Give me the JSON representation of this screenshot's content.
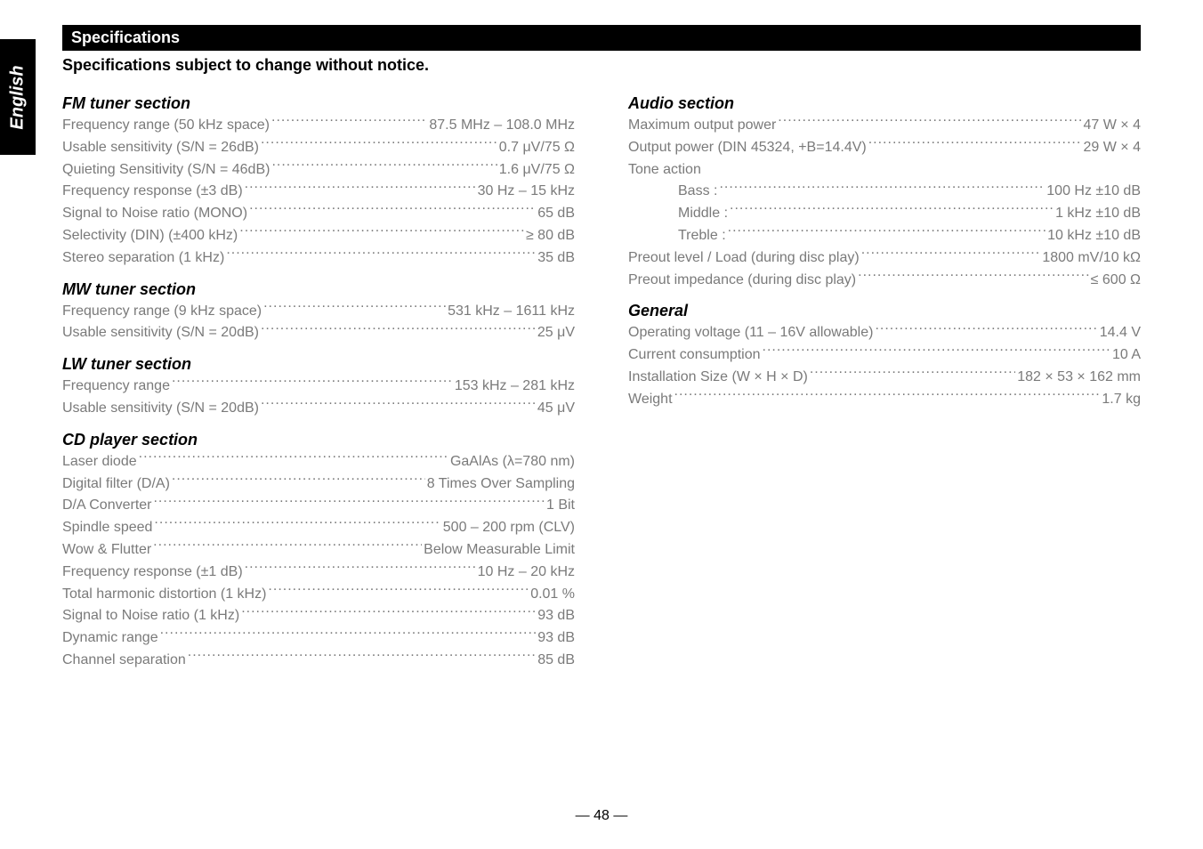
{
  "side_tab": "English",
  "spec_bar": "Specifications",
  "subtitle": "Specifications subject to change without notice.",
  "page_number": "— 48 —",
  "left": {
    "fm": {
      "head": "FM tuner section",
      "rows": [
        {
          "label": "Frequency range (50 kHz space)",
          "value": "87.5 MHz – 108.0 MHz"
        },
        {
          "label": "Usable sensitivity (S/N = 26dB)",
          "value": "0.7 μV/75 Ω"
        },
        {
          "label": "Quieting Sensitivity (S/N = 46dB)",
          "value": "1.6 μV/75 Ω"
        },
        {
          "label": "Frequency response (±3 dB)",
          "value": "30 Hz – 15 kHz"
        },
        {
          "label": "Signal to Noise ratio (MONO)",
          "value": "65 dB"
        },
        {
          "label": "Selectivity (DIN) (±400 kHz)",
          "value": "≥ 80 dB"
        },
        {
          "label": "Stereo separation (1 kHz)",
          "value": "35 dB"
        }
      ]
    },
    "mw": {
      "head": "MW tuner section",
      "rows": [
        {
          "label": "Frequency range (9 kHz space)",
          "value": "531 kHz – 1611 kHz"
        },
        {
          "label": "Usable sensitivity (S/N = 20dB)",
          "value": "25 μV"
        }
      ]
    },
    "lw": {
      "head": "LW tuner section",
      "rows": [
        {
          "label": "Frequency range",
          "value": "153 kHz – 281 kHz"
        },
        {
          "label": "Usable sensitivity (S/N = 20dB)",
          "value": "45 μV"
        }
      ]
    },
    "cd": {
      "head": "CD player section",
      "rows": [
        {
          "label": "Laser diode",
          "value": "GaAlAs (λ=780 nm)"
        },
        {
          "label": "Digital filter (D/A)",
          "value": "8 Times Over Sampling"
        },
        {
          "label": "D/A Converter",
          "value": "1 Bit"
        },
        {
          "label": "Spindle speed",
          "value": "500 – 200 rpm (CLV)"
        },
        {
          "label": "Wow & Flutter",
          "value": "Below Measurable Limit"
        },
        {
          "label": "Frequency response (±1 dB)",
          "value": "10 Hz – 20 kHz"
        },
        {
          "label": "Total harmonic distortion (1 kHz)",
          "value": "0.01 %"
        },
        {
          "label": "Signal to Noise ratio (1 kHz)",
          "value": "93 dB"
        },
        {
          "label": "Dynamic range",
          "value": "93 dB"
        },
        {
          "label": "Channel separation",
          "value": "85 dB"
        }
      ]
    }
  },
  "right": {
    "audio": {
      "head": "Audio section",
      "rows": [
        {
          "label": "Maximum output power",
          "value": "47 W × 4"
        },
        {
          "label": "Output power (DIN 45324, +B=14.4V)",
          "value": "29 W × 4"
        },
        {
          "label": "Tone action",
          "value": ""
        },
        {
          "label": "Bass :",
          "value": "100 Hz ±10 dB",
          "indent": true
        },
        {
          "label": "Middle :",
          "value": "1 kHz ±10 dB",
          "indent": true
        },
        {
          "label": "Treble :",
          "value": "10 kHz ±10 dB",
          "indent": true
        },
        {
          "label": "Preout level / Load (during disc play)",
          "value": "1800 mV/10 kΩ"
        },
        {
          "label": "Preout impedance (during disc play)",
          "value": "≤ 600 Ω"
        }
      ]
    },
    "general": {
      "head": "General",
      "rows": [
        {
          "label": "Operating voltage (11 – 16V allowable)",
          "value": "14.4 V"
        },
        {
          "label": "Current consumption",
          "value": "10 A"
        },
        {
          "label": "Installation Size (W × H × D)",
          "value": "182 × 53 × 162 mm"
        },
        {
          "label": "Weight",
          "value": "1.7 kg"
        }
      ]
    }
  }
}
